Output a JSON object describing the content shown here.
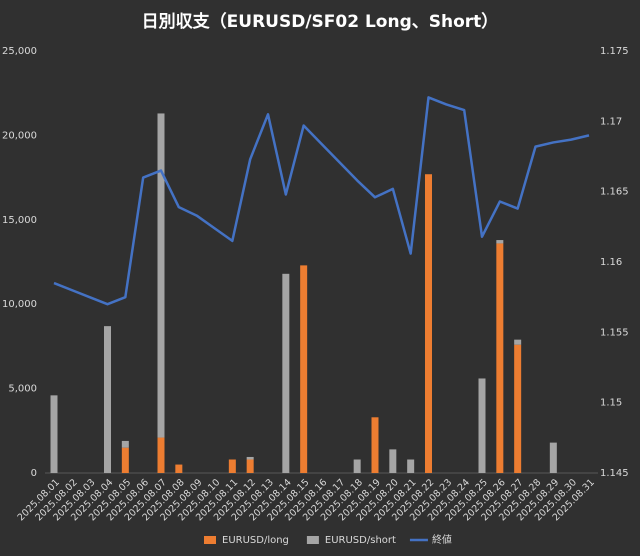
{
  "chart_data": {
    "type": "bar",
    "title": "日別収支（EURUSD/SF02 Long、Short）",
    "stacked": true,
    "categories": [
      "2025.08.01",
      "2025.08.02",
      "2025.08.03",
      "2025.08.04",
      "2025.08.05",
      "2025.08.06",
      "2025.08.07",
      "2025.08.08",
      "2025.08.09",
      "2025.08.10",
      "2025.08.11",
      "2025.08.12",
      "2025.08.13",
      "2025.08.14",
      "2025.08.15",
      "2025.08.16",
      "2025.08.17",
      "2025.08.18",
      "2025.08.19",
      "2025.08.20",
      "2025.08.21",
      "2025.08.22",
      "2025.08.23",
      "2025.08.24",
      "2025.08.25",
      "2025.08.26",
      "2025.08.27",
      "2025.08.28",
      "2025.08.29",
      "2025.08.30",
      "2025.08.31"
    ],
    "series": [
      {
        "name": "EURUSD/long",
        "type": "bar",
        "color": "#ed7d31",
        "values": [
          0,
          0,
          0,
          0,
          1500,
          0,
          2100,
          500,
          0,
          0,
          800,
          800,
          0,
          0,
          12300,
          0,
          0,
          0,
          3300,
          0,
          0,
          17700,
          0,
          0,
          0,
          13600,
          7600,
          0,
          0,
          0,
          0
        ]
      },
      {
        "name": "EURUSD/short",
        "type": "bar",
        "color": "#a5a5a5",
        "values": [
          4600,
          0,
          0,
          8700,
          400,
          0,
          19200,
          0,
          0,
          0,
          0,
          150,
          0,
          11800,
          0,
          0,
          0,
          800,
          0,
          1400,
          800,
          0,
          0,
          0,
          5600,
          200,
          300,
          0,
          1800,
          0,
          0
        ]
      },
      {
        "name": "終値",
        "type": "line",
        "axis": "y2",
        "color": "#4472c4",
        "values": [
          1.1585,
          1.158,
          1.1575,
          1.157,
          1.1575,
          1.166,
          1.1665,
          1.1639,
          1.1633,
          1.1624,
          1.1615,
          1.1673,
          1.1705,
          1.1648,
          1.1697,
          1.1684,
          1.1671,
          1.1658,
          1.1646,
          1.1652,
          1.1606,
          1.1717,
          1.1712,
          1.1708,
          1.1618,
          1.1643,
          1.1638,
          1.1682,
          1.1685,
          1.1687,
          1.169
        ]
      }
    ],
    "ylim": [
      0,
      25000
    ],
    "yticks": [
      0,
      {
        "value": 5000,
        "label": "5,000"
      },
      {
        "value": 10000,
        "label": "10,000"
      },
      {
        "value": 15000,
        "label": "15,000"
      },
      {
        "value": 20000,
        "label": "20,000"
      },
      {
        "value": 25000,
        "label": "25,000"
      }
    ],
    "y2lim": [
      1.145,
      1.175
    ],
    "y2ticks": [
      1.145,
      1.15,
      1.155,
      1.16,
      1.165,
      1.17,
      1.175
    ],
    "legend": "bottom"
  }
}
